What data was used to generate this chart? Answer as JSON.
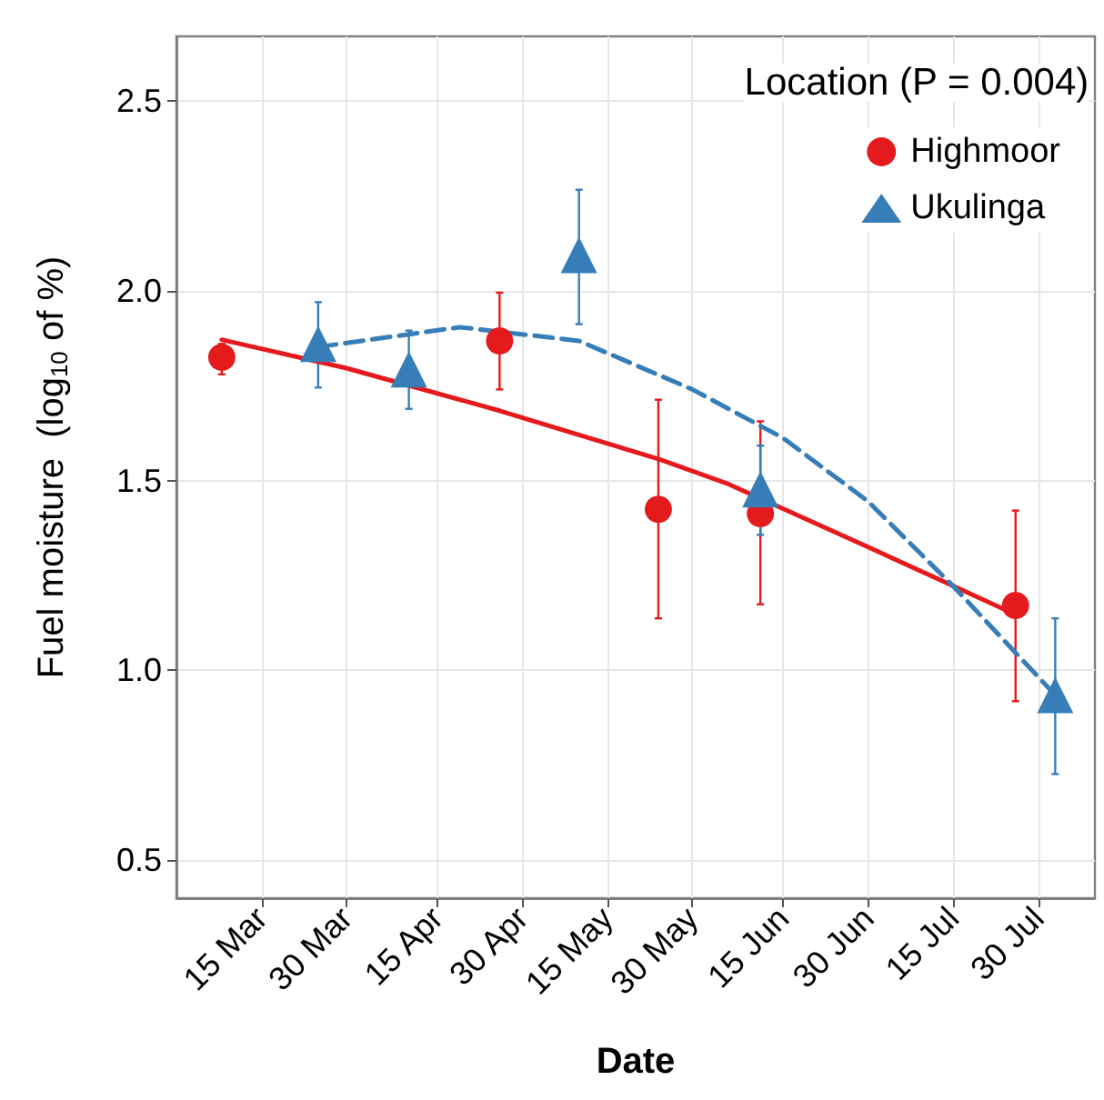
{
  "chart_data": {
    "type": "scatter",
    "xlabel": "Date",
    "ylabel": "Fuel moisture  (log$_{10}$ of %)",
    "legend_title": "Location (P = 0.004)",
    "xlim": [
      "--02-28",
      "--08-09"
    ],
    "ylim": [
      0.4,
      2.67
    ],
    "xticks": [
      {
        "value": "--03-15",
        "label": "15 Mar"
      },
      {
        "value": "--03-30",
        "label": "30 Mar"
      },
      {
        "value": "--04-15",
        "label": "15 Apr"
      },
      {
        "value": "--04-30",
        "label": "30 Apr"
      },
      {
        "value": "--05-15",
        "label": "15 May"
      },
      {
        "value": "--05-30",
        "label": "30 May"
      },
      {
        "value": "--06-15",
        "label": "15 Jun"
      },
      {
        "value": "--06-30",
        "label": "30 Jun"
      },
      {
        "value": "--07-15",
        "label": "15 Jul"
      },
      {
        "value": "--07-30",
        "label": "30 Jul"
      }
    ],
    "yticks": [
      0.5,
      {
        "value": 1,
        "label": "1.0"
      },
      1.5,
      {
        "value": 2,
        "label": "2.0"
      },
      2.5
    ],
    "grid": true,
    "legend": "top right",
    "series": [
      {
        "name": "Highmoor",
        "marker": "circle",
        "color": "#e41a1c",
        "x": [
          "--03-08",
          "--04-26",
          "--05-24",
          "--06-11",
          "--07-26"
        ],
        "values": [
          1.825,
          1.868,
          1.424,
          1.413,
          1.171
        ],
        "errors": [
          [
            1.78,
            1.86
          ],
          [
            1.74,
            1.995
          ],
          [
            1.137,
            1.713
          ],
          [
            1.174,
            1.656
          ],
          [
            0.919,
            1.421
          ]
        ]
      },
      {
        "name": "Ukulinga",
        "marker": "triangle",
        "color": "#377eb8",
        "x": [
          "--03-25",
          "--04-10",
          "--05-10",
          "--06-11",
          "--08-02"
        ],
        "values": [
          1.86,
          1.793,
          2.094,
          1.477,
          0.935
        ],
        "errors": [
          [
            1.745,
            1.97
          ],
          [
            1.689,
            1.895
          ],
          [
            1.912,
            2.266
          ],
          [
            1.357,
            1.592
          ],
          [
            0.727,
            1.137
          ]
        ]
      },
      {
        "type": "line",
        "line_style": "solid",
        "marker": "none",
        "color": "#e41a1c",
        "x": [
          "--03-08",
          "--03-30",
          "--04-26",
          "--05-24",
          "--06-05",
          "--06-30",
          "--07-26"
        ],
        "values": [
          1.871,
          1.796,
          1.684,
          1.557,
          1.493,
          1.325,
          1.147
        ]
      },
      {
        "type": "line",
        "line_style": "dashed",
        "marker": "none",
        "color": "#377eb8",
        "x": [
          "--03-25",
          "--04-19",
          "--05-10",
          "--05-30",
          "--06-15",
          "--06-30",
          "--07-15",
          "--08-02"
        ],
        "values": [
          1.852,
          1.904,
          1.868,
          1.74,
          1.612,
          1.445,
          1.222,
          0.935
        ]
      }
    ]
  }
}
